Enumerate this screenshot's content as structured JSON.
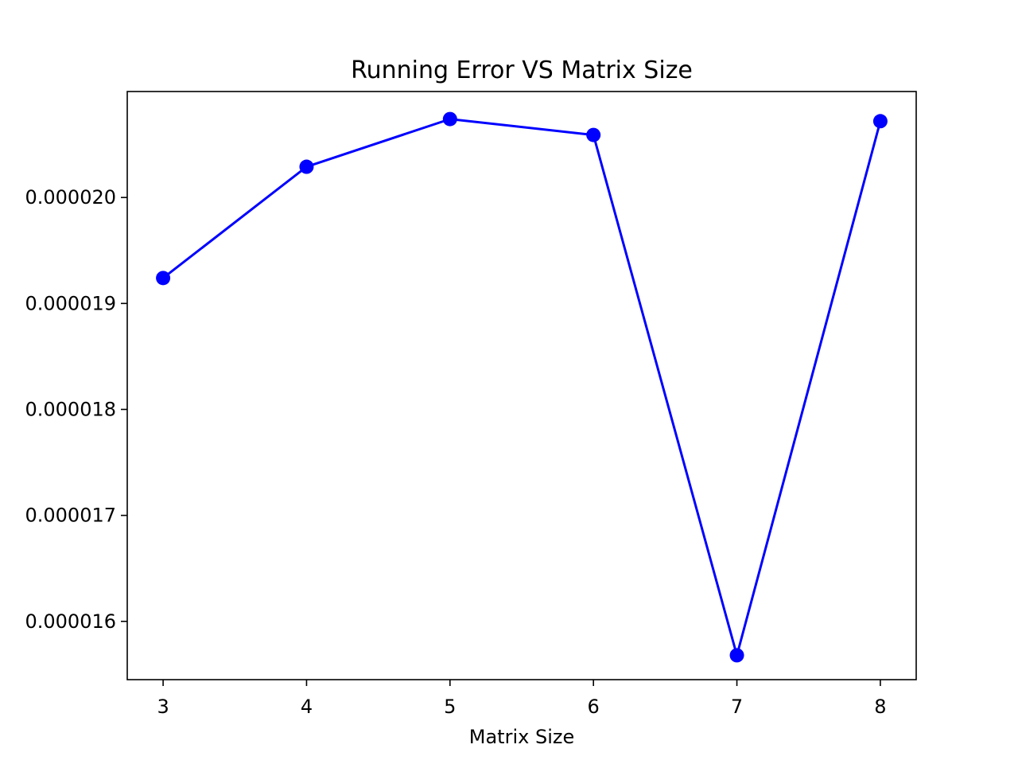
{
  "chart_data": {
    "type": "line",
    "title": "Running Error VS Matrix Size",
    "xlabel": "Matrix Size",
    "ylabel": "",
    "x": [
      3,
      4,
      5,
      6,
      7,
      8
    ],
    "series": [
      {
        "values": [
          1.924e-05,
          2.029e-05,
          2.074e-05,
          2.059e-05,
          1.568e-05,
          2.072e-05
        ],
        "color": "#0000ff",
        "marker": "circle"
      }
    ],
    "xlim": [
      2.75,
      8.25
    ],
    "ylim": [
      1.545e-05,
      2.1e-05
    ],
    "xticks": [
      3,
      4,
      5,
      6,
      7,
      8
    ],
    "xtick_labels": [
      "3",
      "4",
      "5",
      "6",
      "7",
      "8"
    ],
    "yticks": [
      1.6e-05,
      1.7e-05,
      1.8e-05,
      1.9e-05,
      2e-05
    ],
    "ytick_labels": [
      "0.000016",
      "0.000017",
      "0.000018",
      "0.000019",
      "0.000020"
    ],
    "grid": false,
    "legend": "none"
  }
}
